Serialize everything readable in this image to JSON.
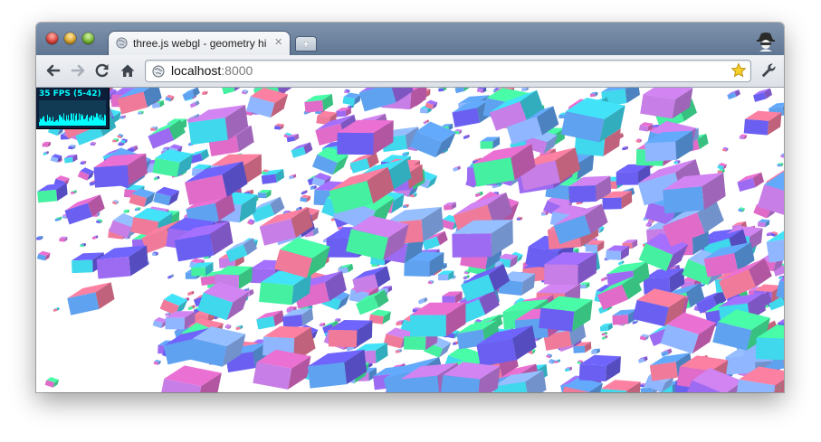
{
  "window": {
    "tab": {
      "title": "three.js webgl - geometry hi",
      "favicon": "globe-icon",
      "close_icon": "close-icon"
    },
    "new_tab_icon": "plus-icon",
    "incognito_icon": "incognito-icon"
  },
  "toolbar": {
    "back_icon": "back-arrow-icon",
    "forward_icon": "forward-arrow-icon",
    "reload_icon": "reload-icon",
    "home_icon": "home-icon",
    "bookmark_icon": "star-icon",
    "settings_icon": "wrench-icon"
  },
  "address_bar": {
    "host": "localhost",
    "port": ":8000"
  },
  "stats": {
    "fps_label": "35 FPS (5-42)",
    "text_color": "#00ffff",
    "bg_color": "#0c1e3a"
  },
  "scene": {
    "palette": [
      "#6a5ff0",
      "#9d6bf2",
      "#c77ee6",
      "#e06bc9",
      "#5fa2f0",
      "#3fd8ec",
      "#45f0a0",
      "#f07a9a",
      "#8fb6ff"
    ]
  }
}
